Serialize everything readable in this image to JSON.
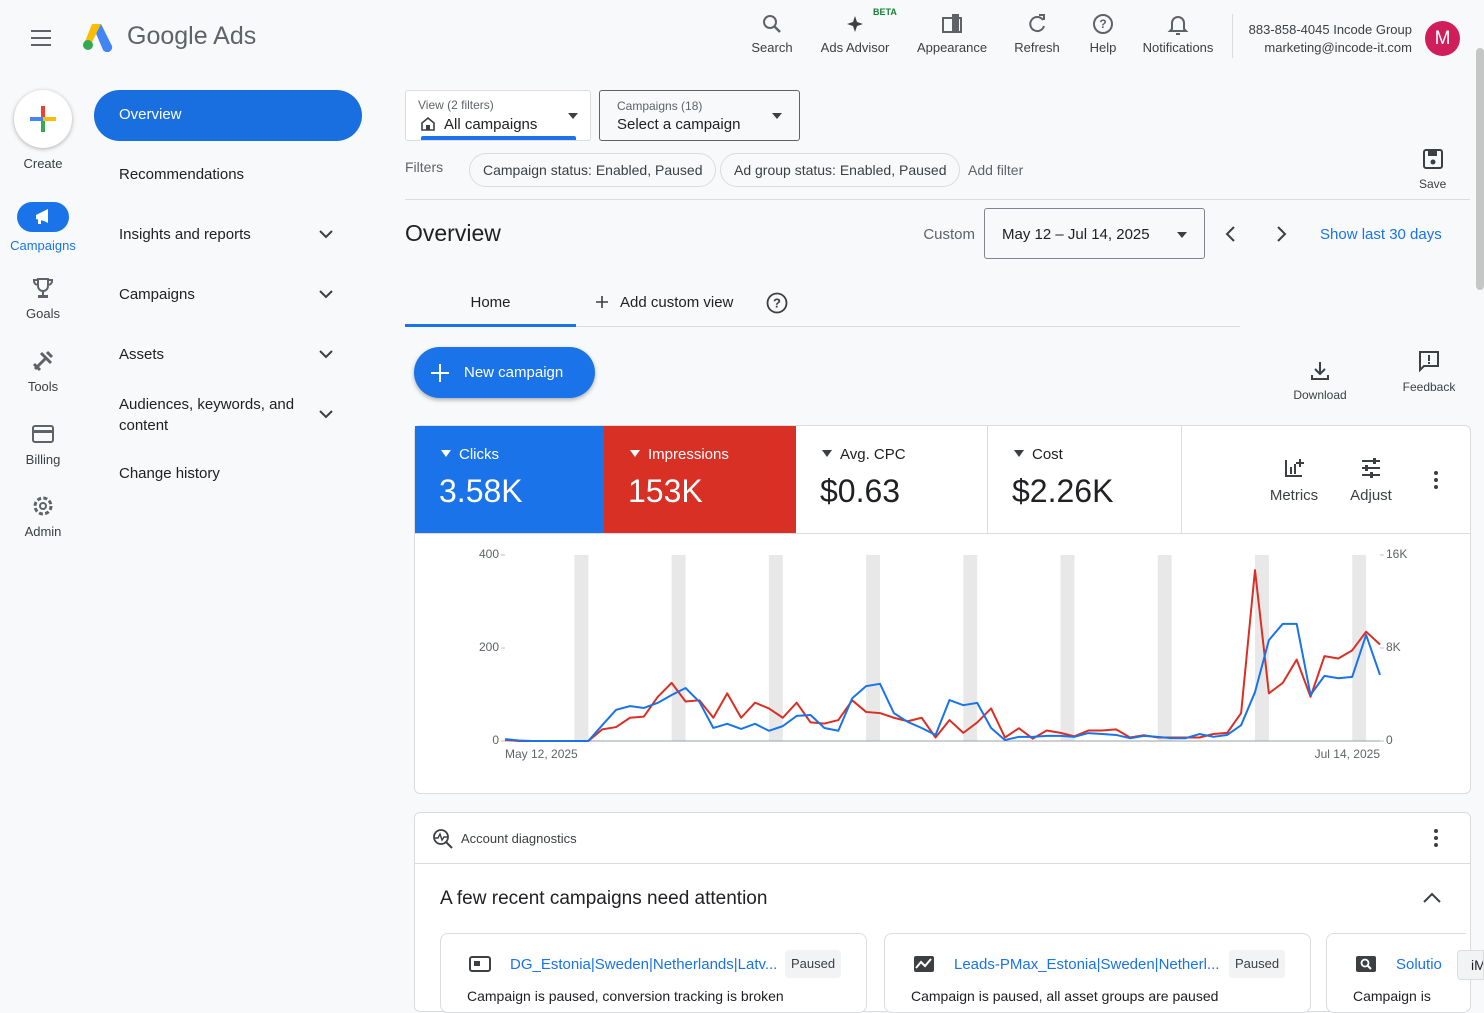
{
  "header": {
    "product": "Google Ads",
    "tools": [
      {
        "label": "Search"
      },
      {
        "label": "Ads Advisor",
        "badge": "BETA"
      },
      {
        "label": "Appearance"
      },
      {
        "label": "Refresh"
      },
      {
        "label": "Help"
      },
      {
        "label": "Notifications"
      }
    ],
    "account": {
      "line1": "883-858-4045 Incode Group",
      "line2": "marketing@incode-it.com",
      "avatar": "M"
    }
  },
  "rail": [
    "Create",
    "Campaigns",
    "Goals",
    "Tools",
    "Billing",
    "Admin"
  ],
  "side_nav": [
    "Overview",
    "Recommendations",
    "Insights and reports",
    "Campaigns",
    "Assets",
    "Audiences, keywords, and content",
    "Change history"
  ],
  "view_selector": {
    "caption": "View (2 filters)",
    "value": "All campaigns"
  },
  "campaign_selector": {
    "caption": "Campaigns (18)",
    "value": "Select a campaign"
  },
  "filters": {
    "label": "Filters",
    "chips": [
      "Campaign status: Enabled, Paused",
      "Ad group status: Enabled, Paused"
    ],
    "add": "Add filter"
  },
  "save": "Save",
  "overview": {
    "title": "Overview",
    "range_label": "Custom",
    "date_range": "May 12 – Jul 14, 2025",
    "show_last": "Show last 30 days"
  },
  "tabs": [
    "Home",
    "Add custom view"
  ],
  "new_campaign": "New campaign",
  "actions": [
    "Download",
    "Feedback"
  ],
  "metrics": [
    {
      "value": "3.58K"
    },
    {
      "value": "153K"
    },
    {
      "name": "Avg. CPC",
      "value": "$0.63"
    },
    {
      "name": "Cost",
      "value": "$2.26K"
    }
  ],
  "metric_tools": [
    "Metrics",
    "Adjust"
  ],
  "chart_data": {
    "type": "line",
    "categories": [
      "May 12, 2025",
      null,
      null,
      null,
      null,
      null,
      null,
      null,
      null,
      null,
      null,
      null,
      null,
      null,
      null,
      null,
      null,
      null,
      null,
      null,
      null,
      null,
      null,
      null,
      null,
      null,
      null,
      null,
      null,
      null,
      null,
      null,
      null,
      null,
      null,
      null,
      null,
      null,
      null,
      null,
      null,
      null,
      null,
      null,
      null,
      null,
      null,
      null,
      null,
      null,
      null,
      null,
      null,
      null,
      null,
      null,
      null,
      null,
      null,
      null,
      null,
      null,
      null,
      "Jul 14, 2025"
    ],
    "series": [
      {
        "name": "Clicks",
        "color": "#1a73e8",
        "values": [
          4,
          1,
          0,
          0,
          0,
          0,
          0,
          34,
          67,
          75,
          71,
          82,
          99,
          114,
          84,
          28,
          37,
          26,
          37,
          22,
          32,
          54,
          56,
          28,
          22,
          92,
          118,
          123,
          60,
          41,
          28,
          13,
          88,
          77,
          82,
          28,
          2,
          9,
          9,
          11,
          11,
          9,
          17,
          15,
          13,
          6,
          11,
          9,
          6,
          6,
          15,
          9,
          13,
          34,
          105,
          217,
          252,
          252,
          99,
          140,
          135,
          138,
          228,
          142
        ]
      },
      {
        "name": "Impressions",
        "color": "#d93025",
        "axis": "y2",
        "values": [
          100,
          0,
          0,
          0,
          0,
          0,
          0,
          1000,
          1200,
          2000,
          2100,
          3800,
          5000,
          3400,
          3500,
          2000,
          4100,
          2000,
          3300,
          2800,
          2000,
          3300,
          1600,
          1500,
          1800,
          3500,
          2500,
          2400,
          2000,
          1700,
          2000,
          300,
          1800,
          700,
          1600,
          2800,
          300,
          1100,
          200,
          900,
          700,
          400,
          900,
          900,
          1000,
          300,
          500,
          300,
          300,
          300,
          300,
          600,
          700,
          2400,
          14700,
          4100,
          5000,
          7000,
          3800,
          7300,
          7100,
          7800,
          9400,
          8300
        ]
      }
    ],
    "ylim": [
      0,
      400
    ],
    "yticks": [
      0,
      200,
      400
    ],
    "y2lim": [
      0,
      16000
    ],
    "y2ticks": [
      0,
      {
        "value": 8000,
        "label": "8K"
      },
      {
        "value": 16000,
        "label": "16K"
      }
    ],
    "grid": false
  },
  "diagnostics": {
    "title": "Account diagnostics",
    "heading": "A few recent campaigns need attention",
    "cards": [
      {
        "name": "DG_Estonia|Sweden|Netherlands|Latv...",
        "status": "Paused",
        "text": "Campaign is paused, conversion tracking is broken"
      },
      {
        "name": "Leads-PMax_Estonia|Sweden|Netherl...",
        "status": "Paused",
        "text": "Campaign is paused, all asset groups are paused"
      },
      {
        "name": "Solutio",
        "text": "Campaign is"
      }
    ]
  },
  "corner_badge": "iM"
}
